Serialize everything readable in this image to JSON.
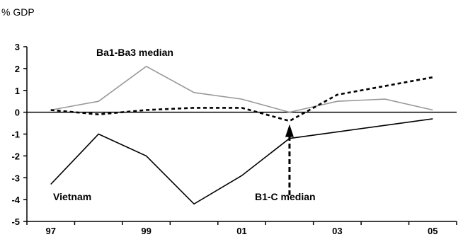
{
  "chart_data": {
    "type": "line",
    "title": "",
    "unit_label": "% GDP",
    "xlabel": "",
    "ylabel": "",
    "x": [
      1997,
      1998,
      1999,
      2000,
      2001,
      2002,
      2003,
      2004,
      2005
    ],
    "x_tick_labels": [
      "97",
      "99",
      "01",
      "03",
      "05"
    ],
    "x_tick_values": [
      1997,
      1999,
      2001,
      2003,
      2005
    ],
    "ylim": [
      -5,
      3
    ],
    "y_ticks": [
      3,
      2,
      1,
      0,
      -1,
      -2,
      -3,
      -4,
      -5
    ],
    "grid": false,
    "series": [
      {
        "name": "Ba1-Ba3 median",
        "color": "#999999",
        "style": "solid",
        "values": [
          0.1,
          0.5,
          2.1,
          0.9,
          0.6,
          0.0,
          0.5,
          0.6,
          0.1
        ]
      },
      {
        "name": "Vietnam",
        "color": "#000000",
        "style": "solid",
        "values": [
          -3.3,
          -1.0,
          -2.0,
          -4.2,
          -2.9,
          -1.2,
          -0.9,
          -0.6,
          -0.3
        ]
      },
      {
        "name": "B1-C median",
        "color": "#000000",
        "style": "dashed",
        "values": [
          0.1,
          -0.1,
          0.1,
          0.2,
          0.2,
          -0.4,
          0.8,
          1.2,
          1.6
        ]
      }
    ],
    "annotations": [
      {
        "text": "Ba1-Ba3 median"
      },
      {
        "text": "Vietnam"
      },
      {
        "text": "B1-C median"
      }
    ]
  }
}
